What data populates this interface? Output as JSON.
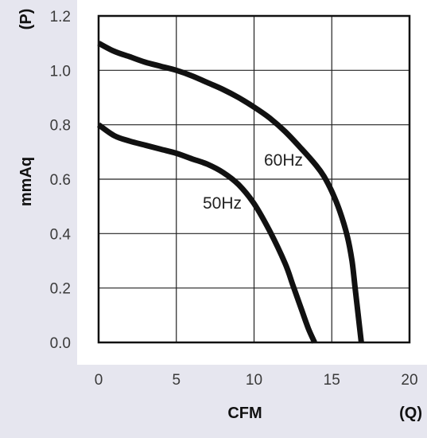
{
  "chart_data": {
    "type": "line",
    "xlabel": "CFM",
    "xunit": "(Q)",
    "ylabel": "mmAq",
    "yunit": "(P)",
    "xlim": [
      0,
      20
    ],
    "ylim": [
      0,
      1.2
    ],
    "x_ticks": [
      "0",
      "5",
      "10",
      "15",
      "20"
    ],
    "y_ticks": [
      "0.0",
      "0.2",
      "0.4",
      "0.6",
      "0.8",
      "1.0",
      "1.2"
    ],
    "grid": true,
    "series": [
      {
        "name": "60Hz",
        "x": [
          0,
          1,
          2,
          3,
          4,
          5,
          6,
          7,
          8,
          9,
          10,
          11,
          12,
          13,
          14,
          14.5,
          15,
          15.5,
          16,
          16.3,
          16.5,
          16.7,
          16.9
        ],
        "y": [
          1.1,
          1.07,
          1.05,
          1.03,
          1.015,
          1.0,
          0.98,
          0.955,
          0.93,
          0.9,
          0.865,
          0.825,
          0.775,
          0.715,
          0.65,
          0.61,
          0.555,
          0.485,
          0.39,
          0.3,
          0.2,
          0.1,
          0.0
        ]
      },
      {
        "name": "50Hz",
        "x": [
          0,
          1,
          2,
          3,
          4,
          5,
          6,
          7,
          8,
          9,
          10,
          11,
          12,
          12.5,
          13,
          13.5,
          13.9
        ],
        "y": [
          0.8,
          0.76,
          0.74,
          0.725,
          0.71,
          0.695,
          0.675,
          0.655,
          0.625,
          0.58,
          0.51,
          0.41,
          0.29,
          0.21,
          0.13,
          0.05,
          0.0
        ]
      }
    ]
  }
}
